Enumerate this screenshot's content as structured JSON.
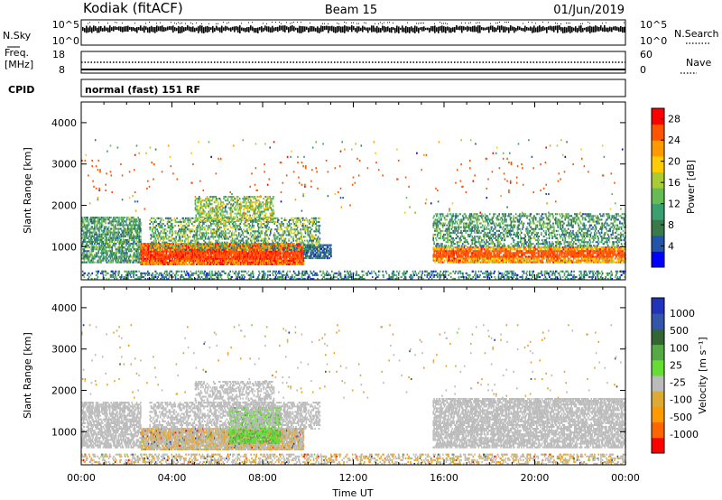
{
  "header": {
    "station": "Kodiak (fitACF)",
    "beam": "Beam 15",
    "date": "01/Jun/2019"
  },
  "top_panels": {
    "nsky_label": "N.Sky",
    "nsky_ticks": [
      "10^5",
      "10^0"
    ],
    "nsearch_label": "N.Search",
    "nsearch_ticks": [
      "10^5",
      "10^0"
    ],
    "freq_label_1": "Freq.",
    "freq_label_2": "[MHz]",
    "freq_ticks": [
      "18",
      "8"
    ],
    "nave_label": "Nave",
    "nave_ticks": [
      "60",
      "0"
    ],
    "cpid_label": "CPID",
    "cpid_text": "normal (fast) 151 RF"
  },
  "colors": {
    "power_scale": [
      "#0000ff",
      "#2255aa",
      "#3a7a4a",
      "#3aa070",
      "#66bb55",
      "#aacc33",
      "#ffcc00",
      "#ff9900",
      "#ff5500",
      "#ff0000"
    ],
    "velocity_scale": [
      "#2233bb",
      "#3355aa",
      "#336633",
      "#55aa44",
      "#66dd33",
      "#bbbbbb",
      "#ddaa33",
      "#ff9900",
      "#ff6600",
      "#ff0000"
    ],
    "ground_scatter": "#bbbbbb"
  },
  "chart_data": [
    {
      "type": "heatmap",
      "name": "power",
      "ylabel": "Slant Range [km]",
      "xlabel": "",
      "x_ticks": [],
      "y_ticks": [
        "1000",
        "2000",
        "3000",
        "4000"
      ],
      "ylim": [
        200,
        4500
      ],
      "xlim_hours": [
        0,
        24
      ],
      "colorbar_label": "Power [dB]",
      "colorbar_ticks": [
        "4",
        "8",
        "12",
        "16",
        "20",
        "24",
        "28"
      ],
      "colorbar_range": [
        0,
        30
      ],
      "regions": [
        {
          "t0": 0.0,
          "t1": 2.6,
          "r0": 600,
          "r1": 1700,
          "pmin": 4,
          "pmax": 16,
          "density": 0.55
        },
        {
          "t0": 2.6,
          "t1": 9.8,
          "r0": 550,
          "r1": 1050,
          "pmin": 20,
          "pmax": 30,
          "density": 0.85
        },
        {
          "t0": 3.0,
          "t1": 10.5,
          "r0": 900,
          "r1": 1700,
          "pmin": 4,
          "pmax": 20,
          "density": 0.35
        },
        {
          "t0": 5.0,
          "t1": 8.5,
          "r0": 1600,
          "r1": 2200,
          "pmin": 8,
          "pmax": 22,
          "density": 0.4
        },
        {
          "t0": 9.8,
          "t1": 11.0,
          "r0": 700,
          "r1": 1050,
          "pmin": 2,
          "pmax": 10,
          "density": 0.6
        },
        {
          "t0": 15.5,
          "t1": 24.0,
          "r0": 600,
          "r1": 1000,
          "pmin": 16,
          "pmax": 28,
          "density": 0.7
        },
        {
          "t0": 15.5,
          "t1": 24.0,
          "r0": 1000,
          "r1": 1800,
          "pmin": 4,
          "pmax": 16,
          "density": 0.35
        },
        {
          "t0": 0.0,
          "t1": 24.0,
          "r0": 200,
          "r1": 400,
          "pmin": 2,
          "pmax": 14,
          "density": 0.3
        },
        {
          "t0": 0.0,
          "t1": 24.0,
          "r0": 1800,
          "r1": 3600,
          "pmin": 2,
          "pmax": 28,
          "density": 0.01
        }
      ]
    },
    {
      "type": "heatmap",
      "name": "velocity",
      "ylabel": "Slant Range [km]",
      "xlabel": "Time UT",
      "x_ticks": [
        "00:00",
        "04:00",
        "08:00",
        "12:00",
        "16:00",
        "20:00",
        "00:00"
      ],
      "y_ticks": [
        "1000",
        "2000",
        "3000",
        "4000"
      ],
      "ylim": [
        200,
        4500
      ],
      "xlim_hours": [
        0,
        24
      ],
      "colorbar_label": "Velocity [m s⁻¹]",
      "colorbar_ticks": [
        "1000",
        "500",
        "100",
        "25",
        "-25",
        "-100",
        "-500",
        "-1000"
      ],
      "regions": [
        {
          "t0": 0.0,
          "t1": 2.6,
          "r0": 600,
          "r1": 1700,
          "kind": "ground",
          "density": 0.55
        },
        {
          "t0": 2.6,
          "t1": 9.8,
          "r0": 550,
          "r1": 1050,
          "kind": "mixed",
          "density": 0.85
        },
        {
          "t0": 6.5,
          "t1": 8.8,
          "r0": 700,
          "r1": 1600,
          "kind": "green",
          "density": 0.55
        },
        {
          "t0": 3.0,
          "t1": 10.5,
          "r0": 1050,
          "r1": 1700,
          "kind": "ground",
          "density": 0.4
        },
        {
          "t0": 5.0,
          "t1": 8.5,
          "r0": 1600,
          "r1": 2200,
          "kind": "ground",
          "density": 0.35
        },
        {
          "t0": 15.5,
          "t1": 24.0,
          "r0": 600,
          "r1": 1800,
          "kind": "ground",
          "density": 0.6
        },
        {
          "t0": 0.0,
          "t1": 24.0,
          "r0": 200,
          "r1": 450,
          "kind": "mixed",
          "density": 0.3
        },
        {
          "t0": 0.0,
          "t1": 24.0,
          "r0": 1800,
          "r1": 3600,
          "kind": "mixed",
          "density": 0.01
        }
      ]
    }
  ]
}
